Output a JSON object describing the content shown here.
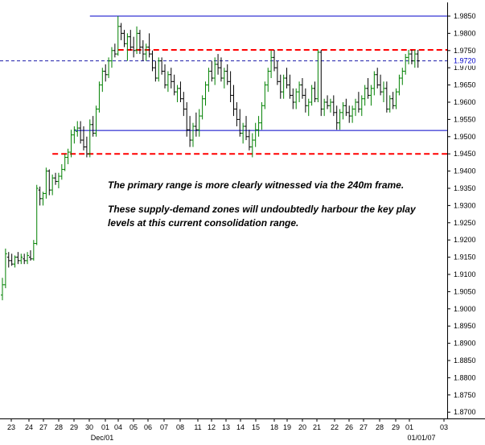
{
  "chart_data": {
    "type": "bar",
    "style": "OHLC price bars",
    "colors": {
      "up": "#008000",
      "down": "#000000",
      "support_resistance_line": "#0000c8",
      "zone_line": "#ff0000",
      "current_level": "#1a1aaa",
      "price_tag_text": "#0000c8"
    },
    "ylim": [
      1.865,
      1.988
    ],
    "yticks": [
      "1.9850",
      "1.9800",
      "1.9750",
      "1.9700",
      "1.9650",
      "1.9600",
      "1.9550",
      "1.9500",
      "1.9450",
      "1.9400",
      "1.9350",
      "1.9300",
      "1.9250",
      "1.9200",
      "1.9150",
      "1.9100",
      "1.9050",
      "1.9000",
      "1.8950",
      "1.8900",
      "1.8850",
      "1.8800",
      "1.8750",
      "1.8700"
    ],
    "current_price_label": "1.9720",
    "current_price": 1.972,
    "xticks": [
      "23",
      "24",
      "27",
      "28",
      "29",
      "30",
      "01",
      "04",
      "05",
      "06",
      "07",
      "08",
      "11",
      "12",
      "13",
      "14",
      "15",
      "18",
      "19",
      "20",
      "21",
      "22",
      "26",
      "27",
      "28",
      "29",
      "01",
      "03"
    ],
    "xlabels_secondary": [
      "Dec/01",
      "01/01/07"
    ],
    "horizontal_lines": [
      {
        "type": "solid",
        "color": "#0000c8",
        "value": 1.985,
        "from_bar": 28
      },
      {
        "type": "dashed",
        "color": "#ff0000",
        "value": 1.9752,
        "from_bar": 37
      },
      {
        "type": "dashed",
        "color": "#1a1aaa",
        "value": 1.972,
        "from_bar": 0
      },
      {
        "type": "solid",
        "color": "#0000c8",
        "value": 1.9518,
        "from_bar": 23
      },
      {
        "type": "dashed",
        "color": "#ff0000",
        "value": 1.945,
        "from_bar": 16
      }
    ],
    "annotations": [
      "The primary range is more clearly witnessed via the 240m frame.",
      "These supply-demand zones will undoubtedly harbour the key play levels at this current consolidation range."
    ],
    "bars": [
      [
        1.904,
        1.909,
        1.9025,
        1.907
      ],
      [
        1.907,
        1.9175,
        1.906,
        1.916
      ],
      [
        1.915,
        1.9165,
        1.912,
        1.914
      ],
      [
        1.914,
        1.916,
        1.9125,
        1.913
      ],
      [
        1.913,
        1.9155,
        1.912,
        1.915
      ],
      [
        1.915,
        1.9165,
        1.913,
        1.914
      ],
      [
        1.914,
        1.916,
        1.913,
        1.915
      ],
      [
        1.9145,
        1.916,
        1.913,
        1.914
      ],
      [
        1.914,
        1.9165,
        1.913,
        1.9155
      ],
      [
        1.915,
        1.917,
        1.914,
        1.9145
      ],
      [
        1.9145,
        1.92,
        1.914,
        1.919
      ],
      [
        1.919,
        1.936,
        1.9185,
        1.935
      ],
      [
        1.9345,
        1.9355,
        1.93,
        1.932
      ],
      [
        1.932,
        1.934,
        1.93,
        1.9335
      ],
      [
        1.9335,
        1.941,
        1.932,
        1.94
      ],
      [
        1.94,
        1.9405,
        1.933,
        1.9345
      ],
      [
        1.9345,
        1.939,
        1.933,
        1.938
      ],
      [
        1.938,
        1.9395,
        1.936,
        1.937
      ],
      [
        1.937,
        1.9395,
        1.935,
        1.9385
      ],
      [
        1.9385,
        1.942,
        1.9375,
        1.9405
      ],
      [
        1.9405,
        1.945,
        1.94,
        1.944
      ],
      [
        1.944,
        1.9465,
        1.942,
        1.9455
      ],
      [
        1.9455,
        1.952,
        1.944,
        1.9505
      ],
      [
        1.9505,
        1.953,
        1.948,
        1.952
      ],
      [
        1.9515,
        1.9545,
        1.95,
        1.9525
      ],
      [
        1.9525,
        1.9545,
        1.948,
        1.949
      ],
      [
        1.949,
        1.953,
        1.946,
        1.947
      ],
      [
        1.947,
        1.95,
        1.944,
        1.945
      ],
      [
        1.945,
        1.955,
        1.944,
        1.9535
      ],
      [
        1.9535,
        1.956,
        1.95,
        1.951
      ],
      [
        1.951,
        1.959,
        1.95,
        1.958
      ],
      [
        1.958,
        1.966,
        1.957,
        1.965
      ],
      [
        1.965,
        1.97,
        1.963,
        1.969
      ],
      [
        1.969,
        1.971,
        1.966,
        1.968
      ],
      [
        1.968,
        1.973,
        1.967,
        1.972
      ],
      [
        1.972,
        1.976,
        1.97,
        1.975
      ],
      [
        1.975,
        1.977,
        1.973,
        1.974
      ],
      [
        1.974,
        1.985,
        1.9735,
        1.982
      ],
      [
        1.982,
        1.983,
        1.978,
        1.98
      ],
      [
        1.98,
        1.981,
        1.976,
        1.977
      ],
      [
        1.977,
        1.98,
        1.972,
        1.979
      ],
      [
        1.979,
        1.981,
        1.975,
        1.976
      ],
      [
        1.976,
        1.979,
        1.973,
        1.975
      ],
      [
        1.975,
        1.982,
        1.974,
        1.98
      ],
      [
        1.98,
        1.981,
        1.974,
        1.976
      ],
      [
        1.976,
        1.978,
        1.972,
        1.974
      ],
      [
        1.974,
        1.977,
        1.972,
        1.976
      ],
      [
        1.976,
        1.98,
        1.973,
        1.974
      ],
      [
        1.974,
        1.975,
        1.969,
        1.97
      ],
      [
        1.97,
        1.972,
        1.966,
        1.967
      ],
      [
        1.967,
        1.973,
        1.966,
        1.972
      ],
      [
        1.972,
        1.973,
        1.968,
        1.969
      ],
      [
        1.969,
        1.971,
        1.964,
        1.965
      ],
      [
        1.965,
        1.969,
        1.963,
        1.968
      ],
      [
        1.968,
        1.97,
        1.964,
        1.966
      ],
      [
        1.966,
        1.968,
        1.962,
        1.963
      ],
      [
        1.963,
        1.965,
        1.96,
        1.964
      ],
      [
        1.964,
        1.966,
        1.96,
        1.961
      ],
      [
        1.961,
        1.963,
        1.956,
        1.958
      ],
      [
        1.958,
        1.96,
        1.95,
        1.952
      ],
      [
        1.952,
        1.956,
        1.947,
        1.949
      ],
      [
        1.949,
        1.954,
        1.947,
        1.953
      ],
      [
        1.953,
        1.957,
        1.95,
        1.952
      ],
      [
        1.952,
        1.958,
        1.95,
        1.956
      ],
      [
        1.956,
        1.962,
        1.955,
        1.961
      ],
      [
        1.961,
        1.966,
        1.959,
        1.965
      ],
      [
        1.965,
        1.97,
        1.963,
        1.969
      ],
      [
        1.969,
        1.972,
        1.966,
        1.967
      ],
      [
        1.967,
        1.973,
        1.965,
        1.971
      ],
      [
        1.971,
        1.974,
        1.968,
        1.97
      ],
      [
        1.97,
        1.973,
        1.966,
        1.967
      ],
      [
        1.967,
        1.97,
        1.964,
        1.969
      ],
      [
        1.969,
        1.971,
        1.965,
        1.966
      ],
      [
        1.966,
        1.969,
        1.96,
        1.962
      ],
      [
        1.962,
        1.965,
        1.956,
        1.958
      ],
      [
        1.958,
        1.96,
        1.953,
        1.955
      ],
      [
        1.955,
        1.958,
        1.95,
        1.951
      ],
      [
        1.951,
        1.954,
        1.948,
        1.953
      ],
      [
        1.953,
        1.956,
        1.949,
        1.95
      ],
      [
        1.95,
        1.952,
        1.946,
        1.947
      ],
      [
        1.947,
        1.951,
        1.944,
        1.949
      ],
      [
        1.949,
        1.954,
        1.947,
        1.952
      ],
      [
        1.952,
        1.956,
        1.95,
        1.954
      ],
      [
        1.954,
        1.96,
        1.952,
        1.959
      ],
      [
        1.959,
        1.966,
        1.958,
        1.965
      ],
      [
        1.965,
        1.97,
        1.963,
        1.969
      ],
      [
        1.969,
        1.975,
        1.967,
        1.973
      ],
      [
        1.973,
        1.9752,
        1.969,
        1.97
      ],
      [
        1.97,
        1.972,
        1.965,
        1.966
      ],
      [
        1.966,
        1.968,
        1.961,
        1.963
      ],
      [
        1.963,
        1.968,
        1.961,
        1.967
      ],
      [
        1.967,
        1.97,
        1.964,
        1.965
      ],
      [
        1.965,
        1.968,
        1.961,
        1.962
      ],
      [
        1.962,
        1.964,
        1.958,
        1.96
      ],
      [
        1.96,
        1.964,
        1.958,
        1.963
      ],
      [
        1.963,
        1.966,
        1.96,
        1.965
      ],
      [
        1.965,
        1.967,
        1.961,
        1.962
      ],
      [
        1.962,
        1.964,
        1.957,
        1.959
      ],
      [
        1.959,
        1.961,
        1.956,
        1.96
      ],
      [
        1.96,
        1.965,
        1.959,
        1.964
      ],
      [
        1.964,
        1.966,
        1.96,
        1.961
      ],
      [
        1.961,
        1.9752,
        1.96,
        1.9745
      ],
      [
        1.9745,
        1.9752,
        1.956,
        1.958
      ],
      [
        1.958,
        1.961,
        1.956,
        1.96
      ],
      [
        1.96,
        1.962,
        1.958,
        1.959
      ],
      [
        1.959,
        1.961,
        1.957,
        1.96
      ],
      [
        1.96,
        1.962,
        1.956,
        1.957
      ],
      [
        1.957,
        1.959,
        1.952,
        1.954
      ],
      [
        1.954,
        1.958,
        1.952,
        1.957
      ],
      [
        1.957,
        1.96,
        1.955,
        1.959
      ],
      [
        1.959,
        1.961,
        1.956,
        1.957
      ],
      [
        1.957,
        1.959,
        1.954,
        1.956
      ],
      [
        1.956,
        1.959,
        1.954,
        1.958
      ],
      [
        1.958,
        1.961,
        1.956,
        1.96
      ],
      [
        1.96,
        1.963,
        1.957,
        1.958
      ],
      [
        1.958,
        1.962,
        1.956,
        1.961
      ],
      [
        1.961,
        1.965,
        1.959,
        1.964
      ],
      [
        1.964,
        1.967,
        1.961,
        1.962
      ],
      [
        1.962,
        1.965,
        1.959,
        1.964
      ],
      [
        1.964,
        1.969,
        1.962,
        1.968
      ],
      [
        1.968,
        1.97,
        1.964,
        1.965
      ],
      [
        1.965,
        1.968,
        1.962,
        1.963
      ],
      [
        1.963,
        1.966,
        1.96,
        1.964
      ],
      [
        1.964,
        1.966,
        1.957,
        1.958
      ],
      [
        1.958,
        1.962,
        1.957,
        1.961
      ],
      [
        1.961,
        1.963,
        1.958,
        1.959
      ],
      [
        1.959,
        1.964,
        1.958,
        1.963
      ],
      [
        1.963,
        1.968,
        1.962,
        1.967
      ],
      [
        1.967,
        1.97,
        1.965,
        1.969
      ],
      [
        1.969,
        1.974,
        1.968,
        1.973
      ],
      [
        1.973,
        1.9752,
        1.971,
        1.974
      ],
      [
        1.974,
        1.9752,
        1.971,
        1.972
      ],
      [
        1.972,
        1.9752,
        1.97,
        1.974
      ],
      [
        1.974,
        1.9752,
        1.97,
        1.972
      ]
    ]
  }
}
